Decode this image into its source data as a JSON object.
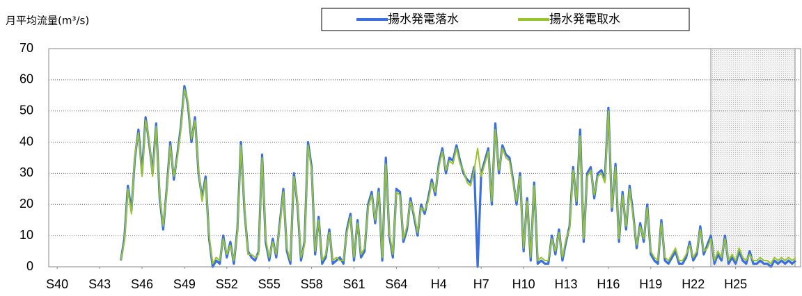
{
  "chart_data": {
    "type": "line",
    "title": "月平均流量(m³/s)",
    "legend": "top",
    "grid": true,
    "ylim": [
      0,
      70
    ],
    "yticks": [
      0,
      10,
      20,
      30,
      40,
      50,
      60,
      70
    ],
    "xlim": [
      1964.9,
      2018.1
    ],
    "xticks": [
      {
        "value": 1965.5,
        "label": "S40"
      },
      {
        "value": 1968.5,
        "label": "S43"
      },
      {
        "value": 1971.5,
        "label": "S46"
      },
      {
        "value": 1974.5,
        "label": "S49"
      },
      {
        "value": 1977.5,
        "label": "S52"
      },
      {
        "value": 1980.5,
        "label": "S55"
      },
      {
        "value": 1983.5,
        "label": "S58"
      },
      {
        "value": 1986.5,
        "label": "S61"
      },
      {
        "value": 1989.5,
        "label": "S64"
      },
      {
        "value": 1992.5,
        "label": "H4"
      },
      {
        "value": 1995.5,
        "label": "H7"
      },
      {
        "value": 1998.5,
        "label": "H10"
      },
      {
        "value": 2001.5,
        "label": "H13"
      },
      {
        "value": 2004.5,
        "label": "H16"
      },
      {
        "value": 2007.5,
        "label": "H19"
      },
      {
        "value": 2010.5,
        "label": "H22"
      },
      {
        "value": 2013.5,
        "label": "H25"
      }
    ],
    "x": [
      1970,
      1970.25,
      1970.5,
      1970.75,
      1971,
      1971.25,
      1971.5,
      1971.75,
      1972,
      1972.25,
      1972.5,
      1972.75,
      1973,
      1973.25,
      1973.5,
      1973.75,
      1974,
      1974.25,
      1974.5,
      1974.75,
      1975,
      1975.25,
      1975.5,
      1975.75,
      1976,
      1976.25,
      1976.5,
      1976.75,
      1977,
      1977.25,
      1977.5,
      1977.75,
      1978,
      1978.25,
      1978.5,
      1978.75,
      1979,
      1979.25,
      1979.5,
      1979.75,
      1980,
      1980.25,
      1980.5,
      1980.75,
      1981,
      1981.25,
      1981.5,
      1981.75,
      1982,
      1982.25,
      1982.5,
      1982.75,
      1983,
      1983.25,
      1983.5,
      1983.75,
      1984,
      1984.25,
      1984.5,
      1984.75,
      1985,
      1985.25,
      1985.5,
      1985.75,
      1986,
      1986.25,
      1986.5,
      1986.75,
      1987,
      1987.25,
      1987.5,
      1987.75,
      1988,
      1988.25,
      1988.5,
      1988.75,
      1989,
      1989.25,
      1989.5,
      1989.75,
      1990,
      1990.25,
      1990.5,
      1990.75,
      1991,
      1991.25,
      1991.5,
      1991.75,
      1992,
      1992.25,
      1992.5,
      1992.75,
      1993,
      1993.25,
      1993.5,
      1993.75,
      1994,
      1994.25,
      1994.5,
      1994.75,
      1995,
      1995.25,
      1995.5,
      1995.75,
      1996,
      1996.25,
      1996.5,
      1996.75,
      1997,
      1997.25,
      1997.5,
      1997.75,
      1998,
      1998.25,
      1998.5,
      1998.75,
      1999,
      1999.25,
      1999.5,
      1999.75,
      2000,
      2000.25,
      2000.5,
      2000.75,
      2001,
      2001.25,
      2001.5,
      2001.75,
      2002,
      2002.25,
      2002.5,
      2002.75,
      2003,
      2003.25,
      2003.5,
      2003.75,
      2004,
      2004.25,
      2004.5,
      2004.75,
      2005,
      2005.25,
      2005.5,
      2005.75,
      2006,
      2006.25,
      2006.5,
      2006.75,
      2007,
      2007.25,
      2007.5,
      2007.75,
      2008,
      2008.25,
      2008.5,
      2008.75,
      2009,
      2009.25,
      2009.5,
      2009.75,
      2010,
      2010.25,
      2010.5,
      2010.75,
      2011,
      2011.25,
      2011.5,
      2011.75,
      2012,
      2012.25,
      2012.5,
      2012.75,
      2013,
      2013.25,
      2013.5,
      2013.75,
      2014,
      2014.25,
      2014.5,
      2014.75,
      2015,
      2015.25,
      2015.5,
      2015.75,
      2016,
      2016.25,
      2016.5,
      2016.75,
      2017,
      2017.25,
      2017.5,
      2017.75
    ],
    "series": [
      {
        "name": "揚水発電落水",
        "color": "#3a6fe0",
        "values": [
          2,
          9,
          26,
          18,
          35,
          44,
          30,
          48,
          40,
          30,
          46,
          22,
          12,
          25,
          40,
          28,
          36,
          45,
          58,
          52,
          40,
          48,
          30,
          22,
          29,
          9,
          0,
          2,
          1,
          10,
          3,
          8,
          1,
          12,
          40,
          18,
          5,
          3,
          2,
          5,
          36,
          8,
          2,
          9,
          3,
          14,
          25,
          5,
          1,
          30,
          20,
          2,
          8,
          40,
          32,
          4,
          16,
          1,
          3,
          12,
          1,
          2,
          3,
          1,
          12,
          17,
          2,
          15,
          3,
          5,
          20,
          24,
          14,
          25,
          2,
          35,
          10,
          3,
          25,
          24,
          8,
          12,
          22,
          16,
          10,
          20,
          17,
          22,
          28,
          23,
          33,
          38,
          30,
          35,
          34,
          39,
          34,
          30,
          28,
          27,
          32,
          0,
          30,
          34,
          38,
          20,
          46,
          30,
          39,
          36,
          35,
          28,
          20,
          30,
          5,
          22,
          2,
          27,
          1,
          2,
          1,
          1,
          10,
          4,
          12,
          2,
          8,
          13,
          32,
          20,
          44,
          8,
          30,
          32,
          22,
          30,
          31,
          28,
          51,
          18,
          33,
          8,
          24,
          12,
          26,
          17,
          6,
          14,
          8,
          20,
          4,
          2,
          1,
          15,
          2,
          1,
          3,
          5,
          1,
          1,
          3,
          8,
          2,
          4,
          13,
          4,
          7,
          10,
          1,
          4,
          2,
          10,
          1,
          3,
          1,
          5,
          2,
          1,
          5,
          1,
          1,
          2,
          1,
          1,
          0,
          2,
          1,
          2,
          1,
          2,
          1,
          2
        ]
      },
      {
        "name": "揚水発電取水",
        "color": "#9ac52a",
        "values": [
          2,
          8,
          25,
          17,
          36,
          43,
          29,
          47,
          41,
          29,
          45,
          23,
          13,
          24,
          39,
          29,
          35,
          44,
          57,
          53,
          41,
          47,
          31,
          21,
          28,
          10,
          1,
          3,
          2,
          9,
          4,
          7,
          2,
          11,
          39,
          19,
          4,
          4,
          3,
          4,
          35,
          9,
          3,
          8,
          4,
          13,
          24,
          6,
          2,
          29,
          21,
          3,
          7,
          39,
          31,
          5,
          15,
          2,
          4,
          11,
          2,
          3,
          2,
          2,
          11,
          16,
          3,
          14,
          4,
          6,
          19,
          23,
          15,
          24,
          3,
          33,
          11,
          4,
          24,
          23,
          9,
          13,
          21,
          17,
          11,
          19,
          18,
          21,
          27,
          24,
          32,
          37,
          31,
          34,
          33,
          38,
          33,
          31,
          27,
          26,
          31,
          38,
          29,
          33,
          37,
          21,
          44,
          31,
          38,
          35,
          34,
          27,
          21,
          29,
          6,
          21,
          3,
          26,
          2,
          3,
          2,
          2,
          9,
          5,
          11,
          3,
          9,
          12,
          31,
          21,
          42,
          9,
          29,
          31,
          23,
          29,
          30,
          27,
          50,
          19,
          32,
          9,
          23,
          13,
          25,
          16,
          7,
          13,
          9,
          19,
          5,
          3,
          2,
          14,
          3,
          2,
          4,
          6,
          2,
          2,
          4,
          7,
          3,
          5,
          12,
          5,
          6,
          9,
          2,
          5,
          3,
          9,
          2,
          4,
          2,
          6,
          3,
          2,
          4,
          2,
          2,
          3,
          2,
          2,
          1,
          3,
          2,
          3,
          2,
          3,
          2,
          3
        ]
      }
    ]
  }
}
